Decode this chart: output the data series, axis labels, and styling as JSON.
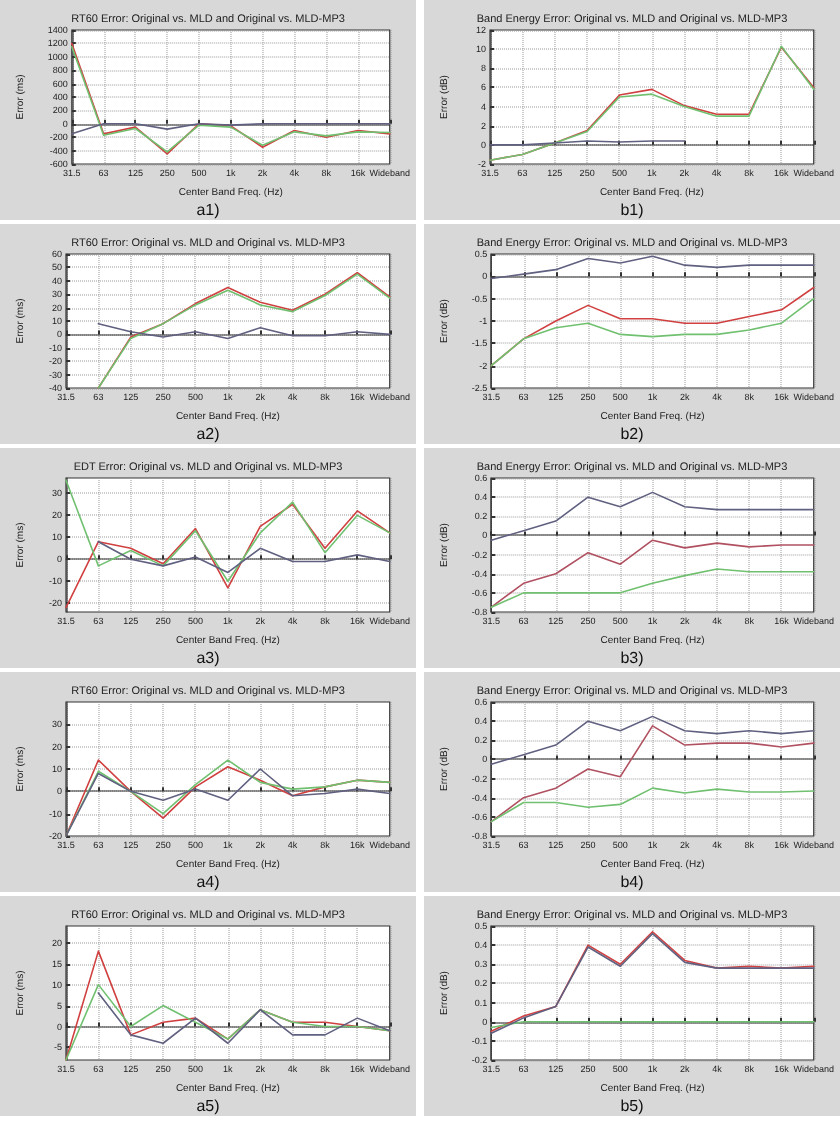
{
  "chart_data": [
    {
      "type": "line",
      "title": "RT60 Error: Original vs. MLD and Original vs. MLD-MP3",
      "xlabel": "Center Band Freq. (Hz)",
      "ylabel": "Error (ms)",
      "annotations": [
        "a1)"
      ],
      "categories": [
        "31.5",
        "63",
        "125",
        "250",
        "500",
        "1k",
        "2k",
        "4k",
        "8k",
        "16k",
        "Wideband"
      ],
      "ylim": [
        -600,
        1400
      ],
      "yticks": [
        -600,
        -400,
        -200,
        0,
        200,
        400,
        600,
        800,
        1000,
        1200,
        1400
      ],
      "grid": true,
      "marker": "none",
      "line_style": "solid",
      "series": [
        {
          "color": "#d04040",
          "values": [
            1200,
            -150,
            -50,
            -450,
            0,
            -30,
            -350,
            -100,
            -200,
            -100,
            -150
          ]
        },
        {
          "color": "#70c070",
          "values": [
            1150,
            -170,
            -70,
            -420,
            -20,
            -50,
            -320,
            -120,
            -180,
            -120,
            -130
          ]
        },
        {
          "color": "#606080",
          "values": [
            -150,
            0,
            0,
            -80,
            0,
            -20,
            0,
            0,
            0,
            0,
            0
          ]
        }
      ]
    },
    {
      "type": "line",
      "title": "Band Energy Error: Original vs. MLD and Original vs. MLD-MP3",
      "xlabel": "Center Band Freq. (Hz)",
      "ylabel": "Error (dB)",
      "annotations": [
        "b1)"
      ],
      "categories": [
        "31.5",
        "63",
        "125",
        "250",
        "500",
        "1k",
        "2k",
        "4k",
        "8k",
        "16k",
        "Wideband"
      ],
      "ylim": [
        -2,
        12
      ],
      "yticks": [
        -2,
        0,
        2,
        4,
        6,
        8,
        10,
        12
      ],
      "grid": true,
      "marker": "none",
      "line_style": "solid",
      "series": [
        {
          "color": "#d04040",
          "values": [
            -1.6,
            -1,
            0.2,
            1.5,
            5.2,
            5.8,
            4.1,
            3.2,
            3.2,
            10.2,
            6
          ]
        },
        {
          "color": "#70c070",
          "values": [
            -1.6,
            -1,
            0.2,
            1.4,
            5,
            5.3,
            4,
            3,
            3,
            10.3,
            5.8
          ]
        },
        {
          "color": "#606080",
          "values": [
            0,
            0,
            0.2,
            0.4,
            0.3,
            0.4,
            0.4,
            null,
            null,
            null,
            null
          ]
        }
      ]
    },
    {
      "type": "line",
      "title": "RT60 Error: Original vs. MLD and Original vs. MLD-MP3",
      "xlabel": "Center Band Freq. (Hz)",
      "ylabel": "Error (ms)",
      "annotations": [
        "a2)"
      ],
      "categories": [
        "31.5",
        "63",
        "125",
        "250",
        "500",
        "1k",
        "2k",
        "4k",
        "8k",
        "16k",
        "Wideband"
      ],
      "ylim": [
        -40,
        60
      ],
      "yticks": [
        -40,
        -30,
        -20,
        -10,
        0,
        10,
        20,
        30,
        40,
        50,
        60
      ],
      "grid": true,
      "marker": "none",
      "line_style": "solid",
      "series": [
        {
          "color": "#d04040",
          "values": [
            null,
            -40,
            -2,
            8,
            23,
            35,
            24,
            18,
            30,
            46,
            28
          ]
        },
        {
          "color": "#70c070",
          "values": [
            null,
            -40,
            -3,
            8,
            22,
            33,
            22,
            17,
            29,
            45,
            27
          ]
        },
        {
          "color": "#606080",
          "values": [
            null,
            8,
            2,
            -2,
            2,
            -3,
            5,
            -1,
            -1,
            2,
            0
          ]
        }
      ]
    },
    {
      "type": "line",
      "title": "Band Energy Error: Original vs. MLD and Original vs. MLD-MP3",
      "xlabel": "Center Band Freq. (Hz)",
      "ylabel": "Error (dB)",
      "annotations": [
        "b2)"
      ],
      "categories": [
        "31.5",
        "63",
        "125",
        "250",
        "500",
        "1k",
        "2k",
        "4k",
        "8k",
        "16k",
        "Wideband"
      ],
      "ylim": [
        -2.5,
        0.5
      ],
      "yticks": [
        -2.5,
        -2,
        -1.5,
        -1,
        -0.5,
        0,
        0.5
      ],
      "grid": true,
      "marker": "none",
      "line_style": "solid",
      "series": [
        {
          "color": "#d04040",
          "values": [
            -2,
            -1.4,
            -1,
            -0.65,
            -0.95,
            -0.95,
            -1.05,
            -1.05,
            -0.9,
            -0.75,
            -0.25
          ]
        },
        {
          "color": "#70c070",
          "values": [
            -2,
            -1.4,
            -1.15,
            -1.05,
            -1.3,
            -1.35,
            -1.3,
            -1.3,
            -1.2,
            -1.05,
            -0.5
          ]
        },
        {
          "color": "#606080",
          "values": [
            -0.05,
            0.05,
            0.15,
            0.4,
            0.3,
            0.45,
            0.25,
            0.2,
            0.25,
            0.25,
            0.25
          ]
        }
      ]
    },
    {
      "type": "line",
      "title": "EDT Error: Original vs. MLD and Original vs. MLD-MP3",
      "xlabel": "Center Band Freq. (Hz)",
      "ylabel": "Error (ms)",
      "annotations": [
        "a3)"
      ],
      "categories": [
        "31.5",
        "63",
        "125",
        "250",
        "500",
        "1k",
        "2k",
        "4k",
        "8k",
        "16k",
        "Wideband"
      ],
      "ylim": [
        -24,
        37
      ],
      "yticks": [
        -20,
        -10,
        0,
        10,
        20,
        30
      ],
      "grid": true,
      "marker": "none",
      "line_style": "solid",
      "series": [
        {
          "color": "#d04040",
          "values": [
            -22,
            8,
            5,
            -2,
            14,
            -13,
            15,
            25,
            5,
            22,
            12
          ]
        },
        {
          "color": "#70c070",
          "values": [
            36,
            -3,
            4,
            -3,
            13,
            -10,
            12,
            26,
            3,
            20,
            12
          ]
        },
        {
          "color": "#606080",
          "values": [
            null,
            8,
            0,
            -3,
            1,
            -6,
            5,
            -1,
            -1,
            2,
            -1
          ]
        }
      ]
    },
    {
      "type": "line",
      "title": "Band Energy Error: Original vs. MLD and Original vs. MLD-MP3",
      "xlabel": "Center Band Freq. (Hz)",
      "ylabel": "Error (dB)",
      "annotations": [
        "b3)"
      ],
      "categories": [
        "31.5",
        "63",
        "125",
        "250",
        "500",
        "1k",
        "2k",
        "4k",
        "8k",
        "16k",
        "Wideband"
      ],
      "ylim": [
        -0.8,
        0.6
      ],
      "yticks": [
        -0.8,
        -0.6,
        -0.4,
        -0.2,
        0,
        0.2,
        0.4,
        0.6
      ],
      "grid": true,
      "marker": "none",
      "line_style": "solid",
      "series": [
        {
          "color": "#b05060",
          "values": [
            -0.75,
            -0.5,
            -0.4,
            -0.18,
            -0.3,
            -0.05,
            -0.13,
            -0.08,
            -0.12,
            -0.1,
            -0.1
          ]
        },
        {
          "color": "#70c070",
          "values": [
            -0.75,
            -0.6,
            -0.6,
            -0.6,
            -0.6,
            -0.5,
            -0.42,
            -0.35,
            -0.38,
            -0.38,
            -0.38
          ]
        },
        {
          "color": "#606080",
          "values": [
            -0.05,
            0.05,
            0.15,
            0.4,
            0.3,
            0.45,
            0.3,
            0.27,
            0.27,
            0.27,
            0.27
          ]
        }
      ]
    },
    {
      "type": "line",
      "title": "RT60 Error: Original vs. MLD and Original vs. MLD-MP3",
      "xlabel": "Center Band Freq. (Hz)",
      "ylabel": "Error (ms)",
      "annotations": [
        "a4)"
      ],
      "categories": [
        "31.5",
        "63",
        "125",
        "250",
        "500",
        "1k",
        "2k",
        "4k",
        "8k",
        "16k",
        "Wideband"
      ],
      "ylim": [
        -20,
        40
      ],
      "yticks": [
        -20,
        -10,
        0,
        10,
        20,
        30
      ],
      "grid": true,
      "marker": "none",
      "line_style": "solid",
      "series": [
        {
          "color": "#d04040",
          "values": [
            -20,
            14,
            0,
            -12,
            2,
            11,
            5,
            -2,
            2,
            5,
            4
          ]
        },
        {
          "color": "#70c070",
          "values": [
            -20,
            9,
            0,
            -10,
            3,
            14,
            4,
            1,
            2,
            5,
            4
          ]
        },
        {
          "color": "#606080",
          "values": [
            -20,
            8,
            0,
            -4,
            1,
            -4,
            10,
            -2,
            -1,
            1,
            -1
          ]
        }
      ]
    },
    {
      "type": "line",
      "title": "Band Energy Error: Original vs. MLD and Original vs. MLD-MP3",
      "xlabel": "Center Band Freq. (Hz)",
      "ylabel": "Error (dB)",
      "annotations": [
        "b4)"
      ],
      "categories": [
        "31.5",
        "63",
        "125",
        "250",
        "500",
        "1k",
        "2k",
        "4k",
        "8k",
        "16k",
        "Wideband"
      ],
      "ylim": [
        -0.8,
        0.6
      ],
      "yticks": [
        -0.8,
        -0.6,
        -0.4,
        -0.2,
        0,
        0.2,
        0.4,
        0.6
      ],
      "grid": true,
      "marker": "none",
      "line_style": "solid",
      "series": [
        {
          "color": "#b05060",
          "values": [
            -0.65,
            -0.4,
            -0.3,
            -0.1,
            -0.18,
            0.35,
            0.15,
            0.17,
            0.17,
            0.13,
            0.17
          ]
        },
        {
          "color": "#70c070",
          "values": [
            -0.65,
            -0.45,
            -0.45,
            -0.5,
            -0.47,
            -0.3,
            -0.35,
            -0.31,
            -0.34,
            -0.34,
            -0.33
          ]
        },
        {
          "color": "#606080",
          "values": [
            -0.05,
            0.05,
            0.15,
            0.4,
            0.3,
            0.45,
            0.3,
            0.27,
            0.3,
            0.27,
            0.3
          ]
        }
      ]
    },
    {
      "type": "line",
      "title": "RT60 Error: Original vs. MLD and Original vs. MLD-MP3",
      "xlabel": "Center Band Freq. (Hz)",
      "ylabel": "Error (ms)",
      "annotations": [
        "a5)"
      ],
      "categories": [
        "31.5",
        "63",
        "125",
        "250",
        "500",
        "1k",
        "2k",
        "4k",
        "8k",
        "16k",
        "Wideband"
      ],
      "ylim": [
        -8,
        24
      ],
      "yticks": [
        -5,
        0,
        5,
        10,
        15,
        20
      ],
      "grid": true,
      "marker": "none",
      "line_style": "solid",
      "series": [
        {
          "color": "#d04040",
          "values": [
            -8,
            18,
            -2,
            1,
            2,
            -3,
            4,
            1,
            1,
            0,
            -1
          ]
        },
        {
          "color": "#70c070",
          "values": [
            -8,
            10,
            0,
            5,
            1,
            -3,
            4,
            1,
            0,
            0,
            -1
          ]
        },
        {
          "color": "#606080",
          "values": [
            null,
            8,
            -2,
            -4,
            2,
            -4,
            4,
            -2,
            -2,
            2,
            -1
          ]
        }
      ]
    },
    {
      "type": "line",
      "title": "Band Energy Error: Original vs. MLD and Original vs. MLD-MP3",
      "xlabel": "Center Band Freq. (Hz)",
      "ylabel": "Error (dB)",
      "annotations": [
        "b5)"
      ],
      "categories": [
        "31.5",
        "63",
        "125",
        "250",
        "500",
        "1k",
        "2k",
        "4k",
        "8k",
        "16k",
        "Wideband"
      ],
      "ylim": [
        -0.2,
        0.5
      ],
      "yticks": [
        -0.2,
        -0.1,
        0,
        0.1,
        0.2,
        0.3,
        0.4,
        0.5
      ],
      "grid": true,
      "marker": "none",
      "line_style": "solid",
      "series": [
        {
          "color": "#d04040",
          "values": [
            -0.05,
            0.03,
            0.08,
            0.4,
            0.3,
            0.47,
            0.32,
            0.28,
            0.29,
            0.28,
            0.29
          ]
        },
        {
          "color": "#70c070",
          "values": [
            -0.03,
            0,
            0,
            0,
            0,
            0,
            0,
            0,
            0,
            0,
            0
          ]
        },
        {
          "color": "#606080",
          "values": [
            -0.06,
            0.02,
            0.08,
            0.39,
            0.29,
            0.46,
            0.31,
            0.28,
            0.28,
            0.28,
            0.28
          ]
        }
      ]
    }
  ]
}
